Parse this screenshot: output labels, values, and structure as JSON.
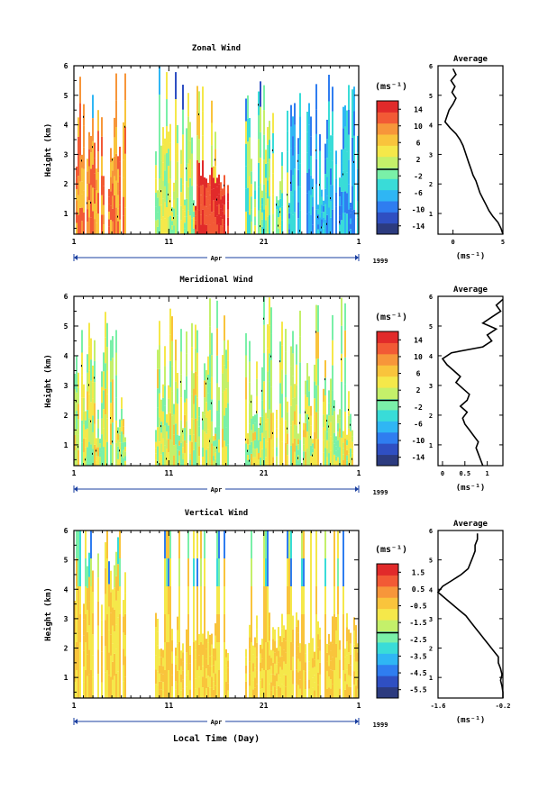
{
  "colors": {
    "background": "#ffffff",
    "axis": "#000000",
    "colormap": [
      "#2c3b7f",
      "#2f4fc2",
      "#2f7df0",
      "#2fb6f4",
      "#39dcd8",
      "#7af0a8",
      "#c4f06a",
      "#f5e84a",
      "#f9c43c",
      "#f7963a",
      "#f25a35",
      "#e12a2a"
    ]
  },
  "chart_data": [
    {
      "type": "heatmap",
      "title": "Zonal Wind",
      "ylabel": "Height (km)",
      "x_ticks": [
        "1",
        "11",
        "21",
        "1"
      ],
      "y_ticks": [
        "1",
        "2",
        "3",
        "4",
        "5",
        "6"
      ],
      "xlim_day": [
        1,
        31
      ],
      "ylim": [
        0.3,
        6
      ],
      "month_label": "Apr",
      "year_label": "1999",
      "unit": "(ms⁻¹)",
      "colorbar_ticks": [
        "14",
        "10",
        "6",
        "2",
        "-2",
        "-6",
        "-10",
        "-14"
      ],
      "colorbar_range": [
        -16,
        16
      ],
      "average": {
        "title": "Average",
        "xlabel": "(ms⁻¹)",
        "x_ticks": [
          "0",
          "5"
        ],
        "xlim": [
          -1.5,
          5
        ],
        "y_ticks": [
          "1",
          "2",
          "3",
          "4",
          "5",
          "6"
        ],
        "heights": [
          0.3,
          0.5,
          0.7,
          0.9,
          1.1,
          1.3,
          1.5,
          1.7,
          1.9,
          2.1,
          2.3,
          2.5,
          2.7,
          2.9,
          3.1,
          3.3,
          3.5,
          3.7,
          3.9,
          4.1,
          4.3,
          4.5,
          4.7,
          4.9,
          5.1,
          5.3,
          5.5,
          5.7,
          5.9
        ],
        "values": [
          5,
          4.8,
          4.5,
          4.0,
          3.6,
          3.3,
          3.0,
          2.7,
          2.5,
          2.3,
          2.0,
          1.8,
          1.6,
          1.4,
          1.2,
          1.0,
          0.7,
          0.3,
          -0.3,
          -0.8,
          -0.6,
          -0.4,
          0.0,
          0.3,
          -0.1,
          0.2,
          -0.2,
          0.3,
          0.0
        ]
      }
    },
    {
      "type": "heatmap",
      "title": "Meridional Wind",
      "ylabel": "Height (km)",
      "x_ticks": [
        "1",
        "11",
        "21",
        "1"
      ],
      "y_ticks": [
        "1",
        "2",
        "3",
        "4",
        "5",
        "6"
      ],
      "xlim_day": [
        1,
        31
      ],
      "ylim": [
        0.3,
        6
      ],
      "month_label": "Apr",
      "year_label": "1999",
      "unit": "(ms⁻¹)",
      "colorbar_ticks": [
        "14",
        "10",
        "6",
        "2",
        "-2",
        "-6",
        "-10",
        "-14"
      ],
      "colorbar_range": [
        -16,
        16
      ],
      "average": {
        "title": "Average",
        "xlabel": "(ms⁻¹)",
        "x_ticks": [
          "0",
          "0.5",
          "1"
        ],
        "xlim": [
          -0.1,
          1.35
        ],
        "y_ticks": [
          "1",
          "2",
          "3",
          "4",
          "5",
          "6"
        ],
        "heights": [
          0.3,
          0.5,
          0.7,
          0.9,
          1.1,
          1.3,
          1.5,
          1.7,
          1.9,
          2.1,
          2.3,
          2.5,
          2.7,
          2.9,
          3.1,
          3.3,
          3.5,
          3.7,
          3.9,
          4.1,
          4.3,
          4.5,
          4.7,
          4.9,
          5.1,
          5.3,
          5.5,
          5.7,
          5.9
        ],
        "values": [
          0.9,
          0.85,
          0.8,
          0.75,
          0.8,
          0.7,
          0.6,
          0.5,
          0.45,
          0.55,
          0.4,
          0.55,
          0.6,
          0.45,
          0.3,
          0.4,
          0.25,
          0.1,
          0.0,
          0.2,
          0.9,
          1.1,
          1.0,
          1.2,
          0.9,
          1.1,
          1.3,
          1.2,
          1.35
        ]
      }
    },
    {
      "type": "heatmap",
      "title": "Vertical Wind",
      "ylabel": "Height (km)",
      "xlabel": "Local Time (Day)",
      "x_ticks": [
        "1",
        "11",
        "21",
        "1"
      ],
      "y_ticks": [
        "1",
        "2",
        "3",
        "4",
        "5",
        "6"
      ],
      "xlim_day": [
        1,
        31
      ],
      "ylim": [
        0.3,
        6
      ],
      "month_label": "Apr",
      "year_label": "1999",
      "unit": "(ms⁻¹)",
      "colorbar_ticks": [
        "1.5",
        "0.5",
        "-0.5",
        "-1.5",
        "-2.5",
        "-3.5",
        "-4.5",
        "-5.5"
      ],
      "colorbar_range": [
        -6,
        2
      ],
      "average": {
        "title": "Average",
        "xlabel": "(ms⁻¹)",
        "x_ticks": [
          "-1.6",
          "-0.2"
        ],
        "xlim": [
          -1.6,
          -0.2
        ],
        "y_ticks": [
          "1",
          "2",
          "3",
          "4",
          "5",
          "6"
        ],
        "heights": [
          0.3,
          0.5,
          0.7,
          0.9,
          1.1,
          1.3,
          1.5,
          1.7,
          1.9,
          2.1,
          2.3,
          2.5,
          2.7,
          2.9,
          3.1,
          3.3,
          3.5,
          3.7,
          3.9,
          4.1,
          4.3,
          4.5,
          4.7,
          4.9,
          5.1,
          5.3,
          5.5,
          5.7,
          5.9
        ],
        "values": [
          -0.2,
          -0.2,
          -0.22,
          -0.25,
          -0.22,
          -0.25,
          -0.3,
          -0.3,
          -0.4,
          -0.5,
          -0.6,
          -0.7,
          -0.8,
          -0.9,
          -1.0,
          -1.15,
          -1.3,
          -1.45,
          -1.6,
          -1.5,
          -1.3,
          -1.1,
          -0.95,
          -0.9,
          -0.85,
          -0.8,
          -0.8,
          -0.75,
          -0.75
        ]
      }
    }
  ]
}
